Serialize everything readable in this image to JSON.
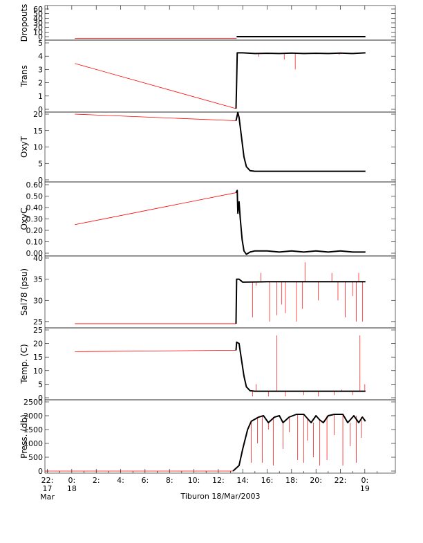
{
  "footer": {
    "title": "Tiburon 18/Mar/2003"
  },
  "colors": {
    "axis": "#000000",
    "data": "#000000",
    "interp": "#ff0000"
  },
  "chart_data": {
    "type": "line",
    "x": {
      "tick_labels": [
        {
          "hour": -2,
          "line1": "22:",
          "line2": "17",
          "line3": "Mar"
        },
        {
          "hour": 0,
          "line1": "0:",
          "line2": "18",
          "line3": ""
        },
        {
          "hour": 2,
          "line1": "2:",
          "line2": "",
          "line3": ""
        },
        {
          "hour": 4,
          "line1": "4:",
          "line2": "",
          "line3": ""
        },
        {
          "hour": 6,
          "line1": "6:",
          "line2": "",
          "line3": ""
        },
        {
          "hour": 8,
          "line1": "8:",
          "line2": "",
          "line3": ""
        },
        {
          "hour": 10,
          "line1": "10:",
          "line2": "",
          "line3": ""
        },
        {
          "hour": 12,
          "line1": "12:",
          "line2": "",
          "line3": ""
        },
        {
          "hour": 14,
          "line1": "14:",
          "line2": "",
          "line3": ""
        },
        {
          "hour": 16,
          "line1": "16:",
          "line2": "",
          "line3": ""
        },
        {
          "hour": 18,
          "line1": "18:",
          "line2": "",
          "line3": ""
        },
        {
          "hour": 20,
          "line1": "20:",
          "line2": "",
          "line3": ""
        },
        {
          "hour": 22,
          "line1": "22:",
          "line2": "",
          "line3": ""
        },
        {
          "hour": 24,
          "line1": "0:",
          "line2": "19",
          "line3": ""
        }
      ],
      "range_hours": [
        -2.2,
        26.5
      ]
    },
    "panels": [
      {
        "id": "dropouts",
        "ylabel": "Dropouts",
        "ylim": [
          0,
          60
        ],
        "ticks": [
          0,
          10,
          20,
          30,
          40,
          50,
          60
        ],
        "tick_labels": [
          "0",
          "10",
          "20",
          "30",
          "40",
          "50",
          "60"
        ],
        "interp": [
          [
            0.25,
            -4
          ],
          [
            13.5,
            -4
          ]
        ],
        "data": [
          [
            13.5,
            0
          ],
          [
            24.05,
            0
          ]
        ],
        "spikes": []
      },
      {
        "id": "trans",
        "ylabel": "Trans",
        "ylim": [
          0,
          5
        ],
        "ticks": [
          0,
          1,
          2,
          3,
          4,
          5
        ],
        "tick_labels": [
          "0",
          "1",
          "2",
          "3",
          "4",
          "5"
        ],
        "interp": [
          [
            0.25,
            3.45
          ],
          [
            13.45,
            0.05
          ]
        ],
        "data": [
          [
            13.45,
            0.05
          ],
          [
            13.5,
            2.0
          ],
          [
            13.55,
            4.25
          ],
          [
            14.0,
            4.25
          ],
          [
            15.0,
            4.2
          ],
          [
            16.0,
            4.22
          ],
          [
            17.0,
            4.2
          ],
          [
            18.0,
            4.23
          ],
          [
            19.0,
            4.2
          ],
          [
            20.0,
            4.22
          ],
          [
            21.0,
            4.2
          ],
          [
            22.0,
            4.23
          ],
          [
            23.0,
            4.2
          ],
          [
            24.05,
            4.25
          ]
        ],
        "spikes": [
          [
            17.4,
            3.75
          ],
          [
            18.3,
            3.0
          ],
          [
            15.3,
            3.95
          ],
          [
            21.9,
            4.1
          ]
        ]
      },
      {
        "id": "oxyt",
        "ylabel": "OxyT",
        "ylim": [
          0,
          20
        ],
        "ticks": [
          0,
          5,
          10,
          15,
          20
        ],
        "tick_labels": [
          "0",
          "5",
          "10",
          "15",
          "20"
        ],
        "interp": [
          [
            0.25,
            20.0
          ],
          [
            13.45,
            18.0
          ]
        ],
        "data": [
          [
            13.45,
            18.0
          ],
          [
            13.6,
            20.5
          ],
          [
            13.7,
            19.0
          ],
          [
            13.9,
            13.0
          ],
          [
            14.1,
            7.0
          ],
          [
            14.3,
            4.0
          ],
          [
            14.6,
            2.8
          ],
          [
            15.0,
            2.6
          ],
          [
            18.0,
            2.6
          ],
          [
            21.0,
            2.6
          ],
          [
            24.05,
            2.6
          ]
        ],
        "spikes": []
      },
      {
        "id": "oxyc",
        "ylabel": "OxyC",
        "ylim": [
          0,
          0.6
        ],
        "ticks": [
          0,
          0.1,
          0.2,
          0.3,
          0.4,
          0.5,
          0.6
        ],
        "tick_labels": [
          "0.00",
          "0.10",
          "0.20",
          "0.30",
          "0.40",
          "0.50",
          "0.60"
        ],
        "interp": [
          [
            0.25,
            0.25
          ],
          [
            13.45,
            0.53
          ]
        ],
        "data": [
          [
            13.45,
            0.53
          ],
          [
            13.55,
            0.55
          ],
          [
            13.6,
            0.35
          ],
          [
            13.7,
            0.45
          ],
          [
            13.8,
            0.3
          ],
          [
            13.95,
            0.12
          ],
          [
            14.1,
            0.02
          ],
          [
            14.3,
            -0.01
          ],
          [
            14.6,
            0.01
          ],
          [
            15.0,
            0.02
          ],
          [
            16.0,
            0.02
          ],
          [
            17.0,
            0.01
          ],
          [
            18.0,
            0.02
          ],
          [
            19.0,
            0.01
          ],
          [
            20.0,
            0.02
          ],
          [
            21.0,
            0.01
          ],
          [
            22.0,
            0.02
          ],
          [
            23.0,
            0.01
          ],
          [
            24.05,
            0.01
          ]
        ],
        "spikes": []
      },
      {
        "id": "sal78",
        "ylabel": "Sal78 (psu)",
        "ylim": [
          24,
          40
        ],
        "ticks": [
          25,
          30,
          35,
          40
        ],
        "tick_labels": [
          "25",
          "30",
          "35",
          "40"
        ],
        "interp": [
          [
            0.25,
            24.5
          ],
          [
            13.45,
            24.5
          ]
        ],
        "data": [
          [
            13.45,
            24.5
          ],
          [
            13.5,
            35.0
          ],
          [
            13.7,
            35.0
          ],
          [
            14.0,
            34.3
          ],
          [
            16.0,
            34.4
          ],
          [
            18.0,
            34.4
          ],
          [
            20.0,
            34.4
          ],
          [
            22.0,
            34.4
          ],
          [
            24.05,
            34.4
          ]
        ],
        "spikes": [
          [
            14.8,
            26
          ],
          [
            15.1,
            33.5
          ],
          [
            15.5,
            36.5
          ],
          [
            16.2,
            25
          ],
          [
            16.8,
            26.5
          ],
          [
            17.2,
            29
          ],
          [
            17.5,
            27
          ],
          [
            18.4,
            25
          ],
          [
            18.9,
            28
          ],
          [
            19.1,
            39
          ],
          [
            20.2,
            30
          ],
          [
            21.3,
            36.5
          ],
          [
            21.8,
            30
          ],
          [
            22.4,
            26
          ],
          [
            23.0,
            31
          ],
          [
            23.3,
            25
          ],
          [
            23.5,
            36.5
          ],
          [
            23.8,
            25
          ]
        ]
      },
      {
        "id": "temp",
        "ylabel": "Temp. (C)",
        "ylim": [
          0,
          25
        ],
        "ticks": [
          0,
          5,
          10,
          15,
          20,
          25
        ],
        "tick_labels": [
          "0",
          "5",
          "10",
          "15",
          "20",
          "25"
        ],
        "interp": [
          [
            0.25,
            17.0
          ],
          [
            13.45,
            17.5
          ]
        ],
        "data": [
          [
            13.45,
            17.5
          ],
          [
            13.5,
            20.5
          ],
          [
            13.7,
            20.0
          ],
          [
            13.9,
            14.0
          ],
          [
            14.1,
            8.0
          ],
          [
            14.3,
            4.0
          ],
          [
            14.6,
            2.6
          ],
          [
            15.0,
            2.4
          ],
          [
            18.0,
            2.4
          ],
          [
            21.0,
            2.4
          ],
          [
            24.05,
            2.4
          ]
        ],
        "spikes": [
          [
            14.8,
            0.5
          ],
          [
            15.1,
            5.0
          ],
          [
            16.1,
            0.5
          ],
          [
            16.8,
            23
          ],
          [
            17.5,
            0.5
          ],
          [
            19.0,
            1.0
          ],
          [
            20.2,
            0.5
          ],
          [
            21.5,
            1.0
          ],
          [
            22.1,
            3.0
          ],
          [
            23.0,
            1.0
          ],
          [
            23.6,
            23
          ],
          [
            24.0,
            5.0
          ]
        ]
      },
      {
        "id": "press",
        "ylabel": "Press. (db)",
        "ylim": [
          0,
          2500
        ],
        "ticks": [
          0,
          500,
          1000,
          1500,
          2000,
          2500
        ],
        "tick_labels": [
          "0",
          "500",
          "1000",
          "1500",
          "2000",
          "2500"
        ],
        "interp": [
          [
            -2.2,
            0
          ],
          [
            13.2,
            0
          ]
        ],
        "data": [
          [
            13.2,
            0
          ],
          [
            13.7,
            200
          ],
          [
            14.0,
            800
          ],
          [
            14.4,
            1500
          ],
          [
            14.7,
            1800
          ],
          [
            15.3,
            1950
          ],
          [
            15.7,
            2000
          ],
          [
            16.1,
            1750
          ],
          [
            16.6,
            1950
          ],
          [
            17.0,
            2000
          ],
          [
            17.3,
            1750
          ],
          [
            17.8,
            1950
          ],
          [
            18.4,
            2050
          ],
          [
            19.0,
            2050
          ],
          [
            19.3,
            1900
          ],
          [
            19.6,
            1750
          ],
          [
            20.0,
            2000
          ],
          [
            20.3,
            1850
          ],
          [
            20.6,
            1750
          ],
          [
            21.0,
            2000
          ],
          [
            21.5,
            2050
          ],
          [
            22.2,
            2050
          ],
          [
            22.6,
            1750
          ],
          [
            23.1,
            2000
          ],
          [
            23.5,
            1750
          ],
          [
            23.8,
            1950
          ],
          [
            24.05,
            1800
          ]
        ],
        "spikes": [
          [
            14.7,
            300
          ],
          [
            15.2,
            1000
          ],
          [
            15.6,
            300
          ],
          [
            16.1,
            1500
          ],
          [
            16.5,
            200
          ],
          [
            17.3,
            800
          ],
          [
            17.8,
            1400
          ],
          [
            18.5,
            400
          ],
          [
            19.0,
            300
          ],
          [
            19.3,
            1100
          ],
          [
            19.8,
            500
          ],
          [
            20.3,
            200
          ],
          [
            20.9,
            400
          ],
          [
            21.5,
            1300
          ],
          [
            22.2,
            200
          ],
          [
            22.8,
            900
          ],
          [
            23.3,
            300
          ],
          [
            23.7,
            1200
          ]
        ]
      }
    ]
  }
}
